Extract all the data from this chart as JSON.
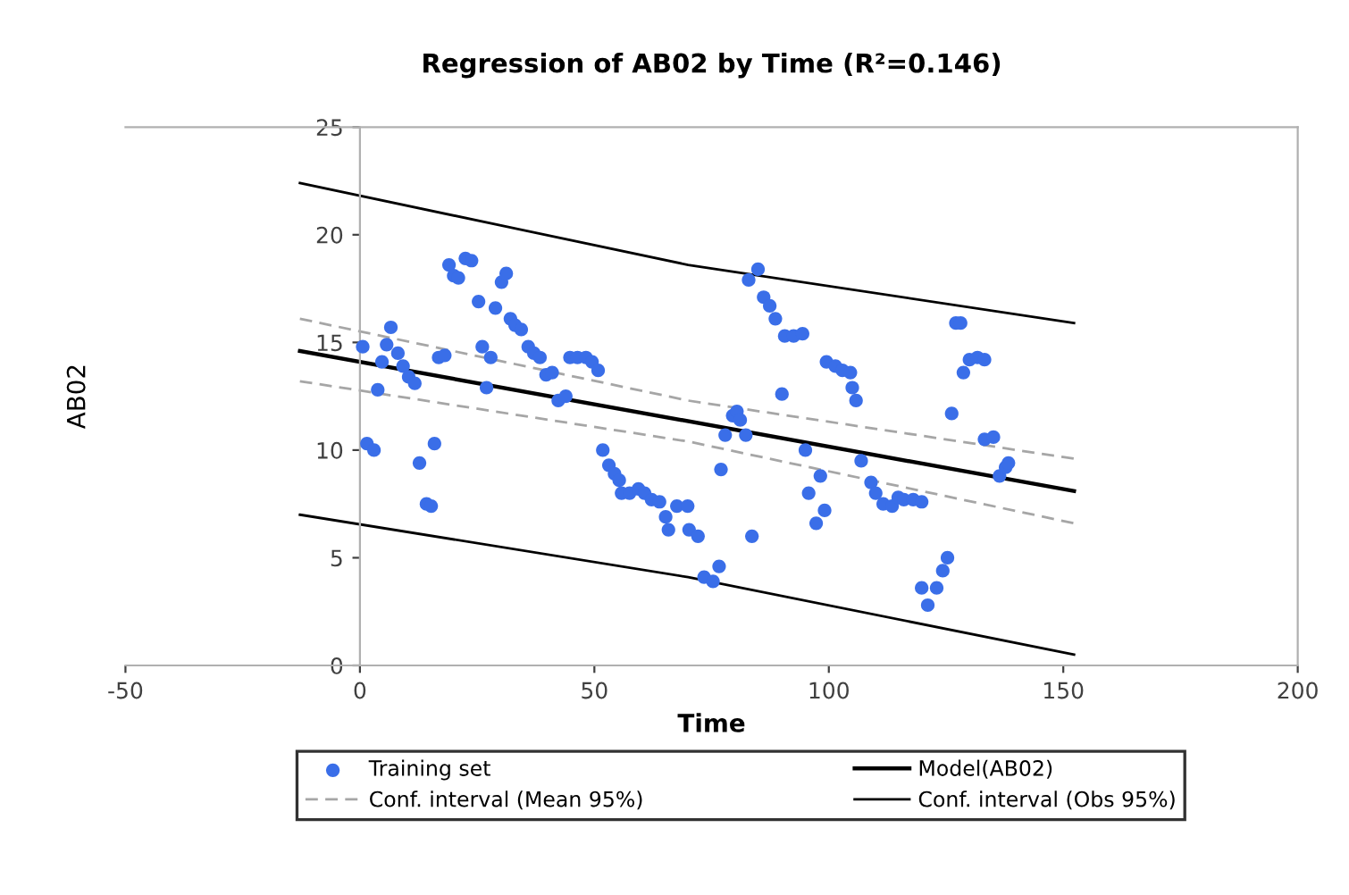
{
  "chart_data": {
    "type": "scatter",
    "title": "Regression of AB02 by Time (R²=0.146)",
    "xlabel": "Time",
    "ylabel": "AB02",
    "xlim": [
      -50,
      200
    ],
    "xticks": [
      -50,
      0,
      50,
      100,
      150,
      200
    ],
    "ylim": [
      0,
      25
    ],
    "yticks": [
      0,
      5,
      10,
      15,
      20,
      25
    ],
    "grid": false,
    "legend": "bottom",
    "series": [
      {
        "name": "Training set",
        "marker": "circle",
        "color": "#3a6ee8",
        "x": [
          0.6,
          1.5,
          3,
          3.8,
          4.7,
          5.7,
          6.6,
          8.1,
          9.2,
          10.4,
          11.7,
          12.7,
          14.2,
          15.2,
          15.9,
          16.8,
          18.1,
          19,
          20,
          21,
          22.5,
          23.8,
          25.3,
          26.1,
          27,
          27.9,
          28.9,
          30.2,
          31.2,
          32.1,
          33.1,
          34.4,
          35.9,
          37.1,
          38.4,
          39.7,
          41.0,
          42.3,
          43.9,
          44.8,
          46.4,
          48.2,
          49.5,
          50.8,
          51.8,
          53.1,
          54.3,
          55.3,
          55.8,
          57.5,
          59.4,
          60.7,
          62.2,
          63.9,
          65.2,
          65.8,
          67.6,
          69.9,
          70.2,
          72.1,
          73.4,
          75.3,
          76.6,
          77.0,
          77.9,
          79.5,
          80.4,
          81.1,
          82.3,
          83.6,
          82.9,
          84.9,
          86.1,
          87.4,
          88.6,
          90.6,
          92.5,
          94.4,
          90,
          95,
          95.7,
          97.3,
          98.2,
          99.1,
          99.5,
          101.4,
          102.9,
          104.6,
          105,
          105.8,
          106.9,
          109,
          110,
          111.6,
          113.5,
          114.8,
          116,
          118,
          119.8,
          119.8,
          121.1,
          123,
          124.3,
          125.3,
          126.2,
          127.1,
          128.1,
          128.7,
          130,
          131.7,
          133.2,
          133.2,
          135.1,
          136.4,
          137.7,
          138.3
        ],
        "values": [
          14.8,
          10.3,
          10.0,
          12.8,
          14.1,
          14.9,
          15.7,
          14.5,
          13.9,
          13.4,
          13.1,
          9.4,
          7.5,
          7.4,
          10.3,
          14.3,
          14.4,
          18.6,
          18.1,
          18.0,
          18.9,
          18.8,
          16.9,
          14.8,
          12.9,
          14.3,
          16.6,
          17.8,
          18.2,
          16.1,
          15.8,
          15.6,
          14.8,
          14.5,
          14.3,
          13.5,
          13.6,
          12.3,
          12.5,
          14.3,
          14.3,
          14.3,
          14.1,
          13.7,
          10.0,
          9.3,
          8.9,
          8.6,
          8.0,
          8.0,
          8.2,
          8.0,
          7.7,
          7.6,
          6.9,
          6.3,
          7.4,
          7.4,
          6.3,
          6.0,
          4.1,
          3.9,
          4.6,
          9.1,
          10.7,
          11.6,
          11.8,
          11.4,
          10.7,
          6.0,
          17.9,
          18.4,
          17.1,
          16.7,
          16.1,
          15.3,
          15.3,
          15.4,
          12.6,
          10.0,
          8.0,
          6.6,
          8.8,
          7.2,
          14.1,
          13.9,
          13.7,
          13.6,
          12.9,
          12.3,
          9.5,
          8.5,
          8.0,
          7.5,
          7.4,
          7.8,
          7.7,
          7.7,
          7.6,
          3.6,
          2.8,
          3.6,
          4.4,
          5.0,
          11.7,
          15.9,
          15.9,
          13.6,
          14.2,
          14.3,
          14.2,
          10.5,
          10.6,
          8.8,
          9.2,
          9.4
        ]
      },
      {
        "name": "Model(AB02)",
        "type": "line",
        "color": "#000000",
        "line_style": "solid",
        "x": [
          -12.8,
          152.3
        ],
        "values": [
          14.6,
          8.1
        ]
      },
      {
        "name": "Conf. interval (Mean 95%)",
        "type": "line",
        "color": "#a6a6a6",
        "line_style": "dashed",
        "x": [
          -12.8,
          70,
          152.3
        ],
        "values": [
          16.1,
          12.3,
          9.6
        ]
      },
      {
        "type": "line",
        "color": "#a6a6a6",
        "line_style": "dashed",
        "x": [
          -12.8,
          70,
          152.3
        ],
        "values": [
          13.2,
          10.4,
          6.6
        ]
      },
      {
        "name": "Conf. interval (Obs 95%)",
        "type": "line",
        "color": "#000000",
        "line_style": "solid",
        "x": [
          -12.8,
          70,
          152.3
        ],
        "values": [
          22.4,
          18.6,
          15.9
        ]
      },
      {
        "type": "line",
        "color": "#000000",
        "line_style": "solid",
        "x": [
          -12.8,
          70,
          152.3
        ],
        "values": [
          7.0,
          4.1,
          0.5
        ]
      }
    ]
  }
}
